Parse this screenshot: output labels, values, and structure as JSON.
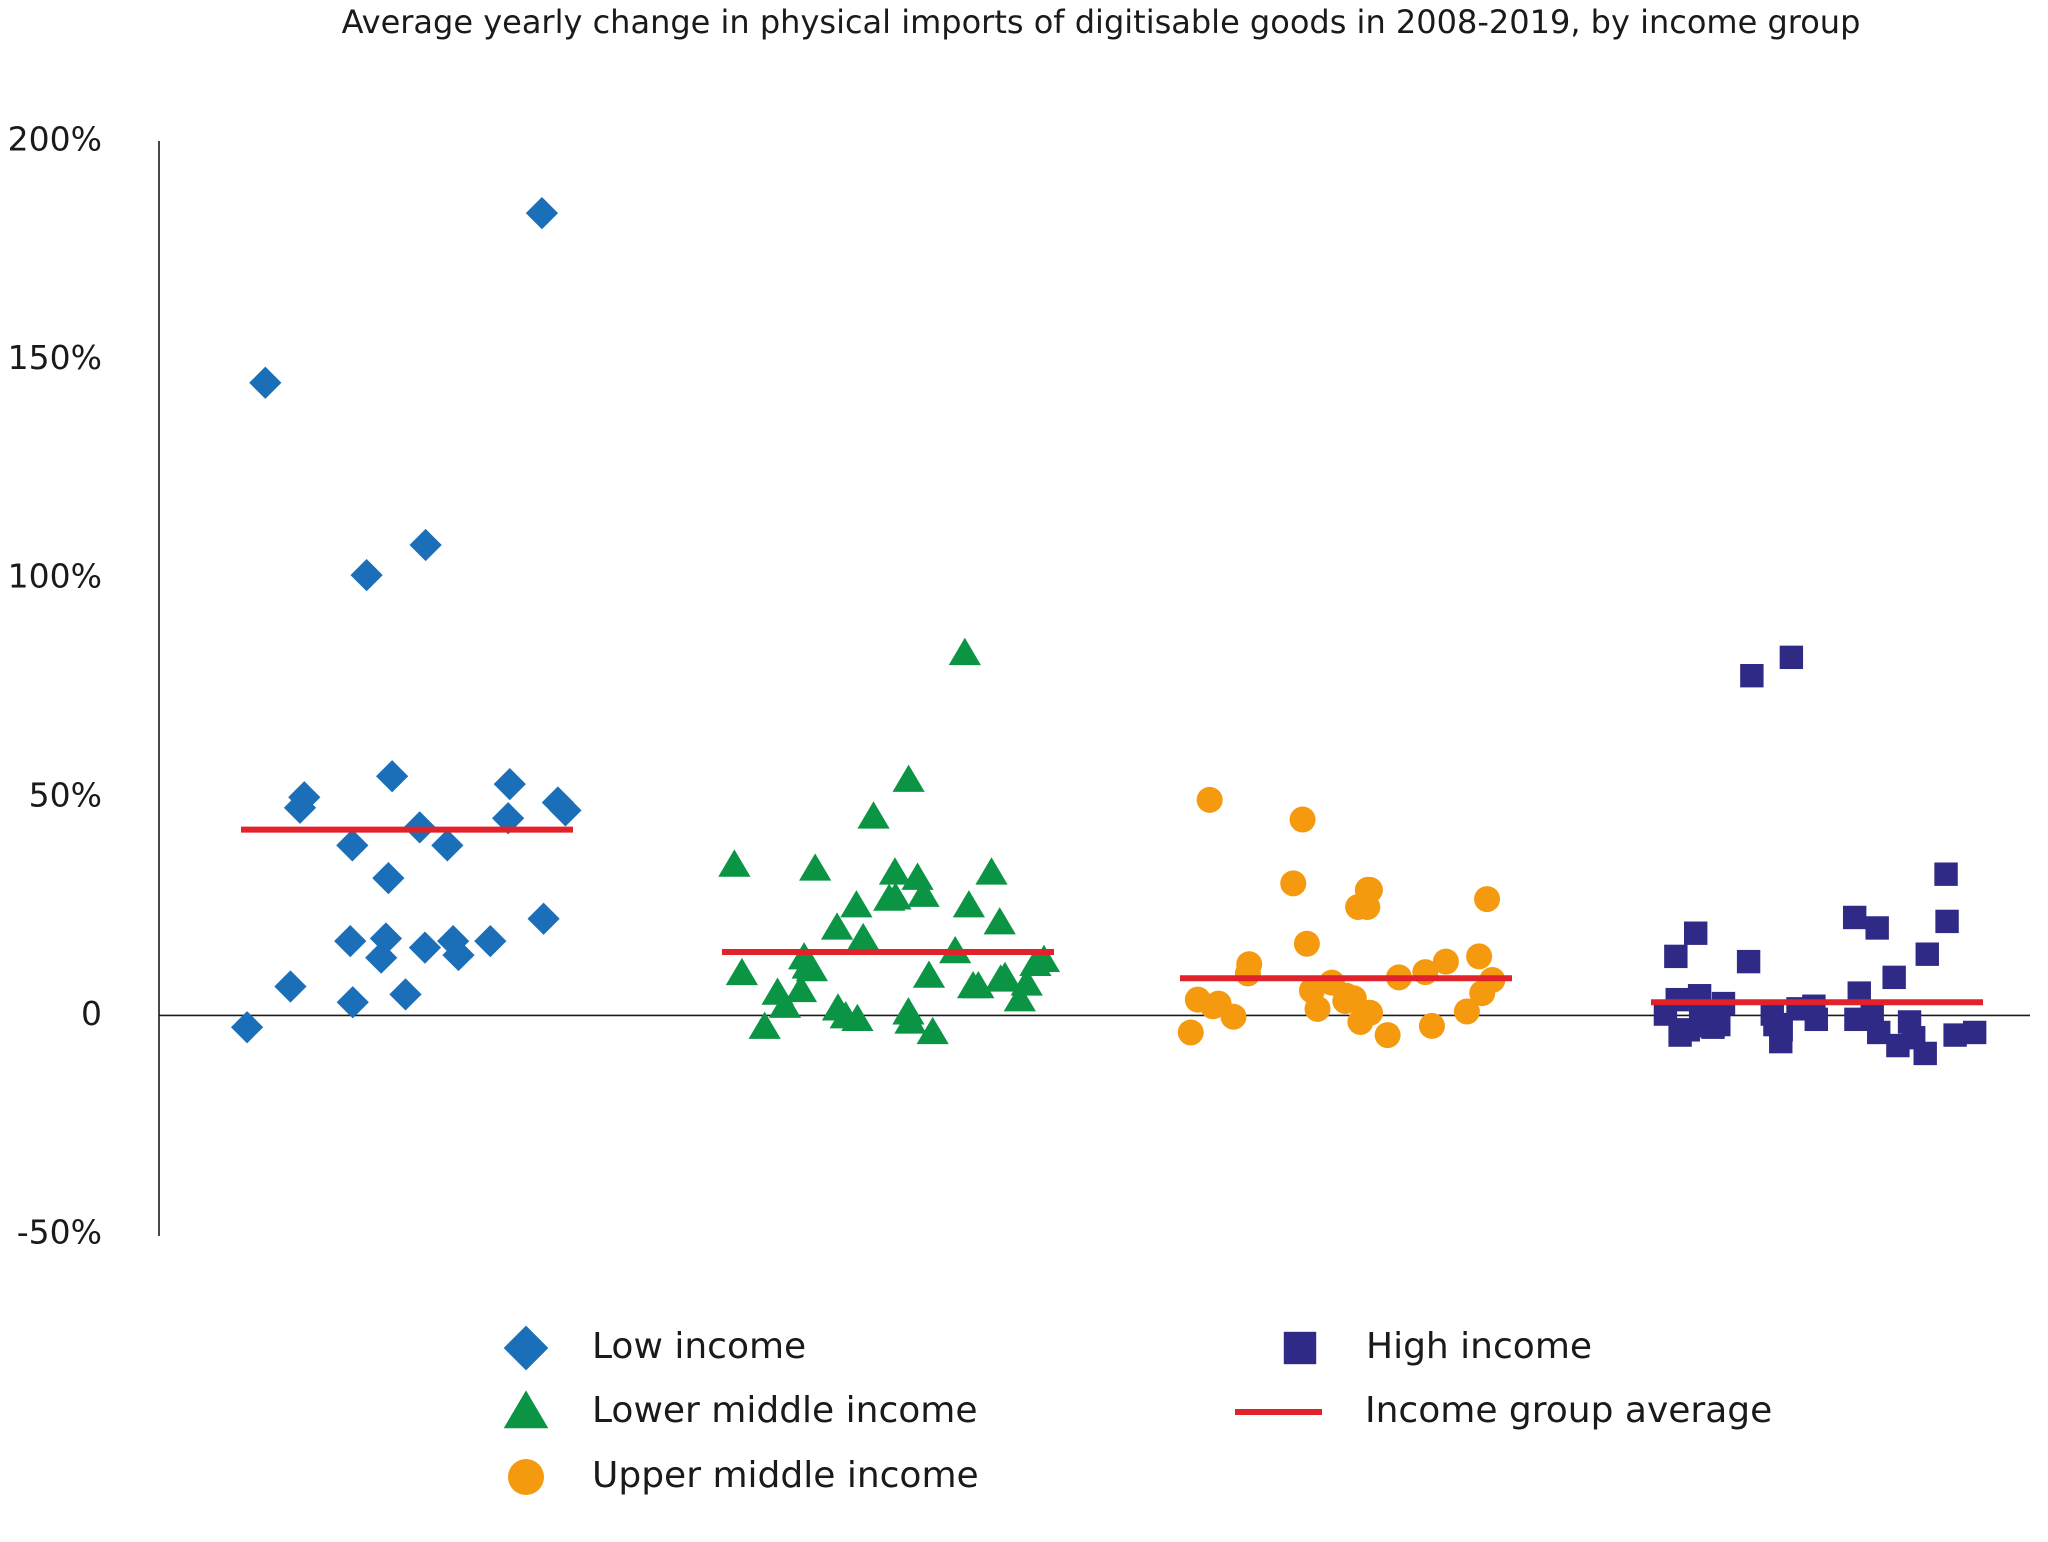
{
  "chart_data": {
    "type": "strip",
    "title": "Average yearly change in physical imports of digitisable goods in 2008-2019, by income group",
    "ylim": [
      -50,
      200
    ],
    "yticks": [
      {
        "value": 200,
        "label": "200%"
      },
      {
        "value": 150,
        "label": "150%"
      },
      {
        "value": 100,
        "label": "100%"
      },
      {
        "value": 50,
        "label": "50%"
      },
      0,
      {
        "value": -50,
        "label": "-50%"
      }
    ],
    "series": [
      {
        "name": "Low income",
        "color": "#1a6fb8",
        "marker": "diamond",
        "values": [
          183.5,
          144.7,
          107.6,
          100.7,
          54.7,
          38.9,
          47.5,
          38.9,
          43,
          48.7,
          52.9,
          49.9,
          46.9,
          45.1,
          31.4,
          22.1,
          17.6,
          17,
          17,
          17,
          15.5,
          13.8,
          13.2,
          6.6,
          3,
          4.8,
          -2.7
        ]
      },
      {
        "name": "Lower middle income",
        "color": "#0a9444",
        "marker": "triangle",
        "values": [
          82.8,
          53.8,
          45.4,
          33.5,
          32.6,
          25.1,
          26.6,
          26.9,
          32.6,
          34.4,
          31.4,
          27.5,
          25.1,
          21.2,
          20,
          17.6,
          13.2,
          12.6,
          14.6,
          8.7,
          8.1,
          9.6,
          9,
          7.2,
          5.7,
          6.6,
          5.1,
          3.6,
          2.1,
          1.5,
          0.6,
          -0.3,
          -0.9,
          -1.5,
          -2.7,
          -3.9,
          11.7,
          11.1,
          10.5,
          6.6
        ]
      },
      {
        "name": "Upper middle income",
        "color": "#f59a0e",
        "marker": "circle",
        "values": [
          49.3,
          44.8,
          30.2,
          26.6,
          24.8,
          28.7,
          24.8,
          28.7,
          28.7,
          16.4,
          13.5,
          12.3,
          11.7,
          9.9,
          8.7,
          8.1,
          7.5,
          5.1,
          4.5,
          3.9,
          3.3,
          2.7,
          2.1,
          1.5,
          0.9,
          0.6,
          -0.3,
          -1.5,
          -2.4,
          -3.9,
          -4.5,
          3.6,
          5.7,
          9.6
        ]
      },
      {
        "name": "High income",
        "color": "#2e2a86",
        "marker": "square",
        "values": [
          81.9,
          77.7,
          32.3,
          22.4,
          21.5,
          20,
          18.8,
          14,
          13.5,
          12.3,
          8.7,
          5.1,
          4.5,
          3.6,
          2.7,
          2.1,
          1.5,
          0.9,
          0.3,
          -0.3,
          -0.9,
          -1.5,
          -2.1,
          -2.7,
          -3.3,
          -3.9,
          -4.5,
          -5.1,
          -6,
          -6.9,
          -8.7,
          -0.9,
          -2.4,
          -3.3,
          -3.9,
          -4.5,
          -1.8,
          -0.3,
          0.3,
          -2.1
        ]
      }
    ],
    "average": {
      "name": "Income group average",
      "color": "#e2222a",
      "values": [
        42.5,
        14.5,
        8.5,
        3
      ]
    }
  }
}
